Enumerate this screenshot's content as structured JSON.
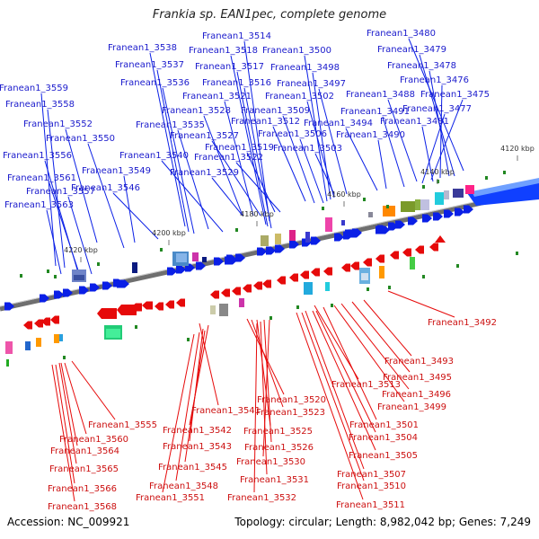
{
  "title": "Frankia sp. EAN1pec, complete genome",
  "footer": {
    "accession": "Accession: NC_009921",
    "summary": "Topology: circular; Length: 8,982,042 bp; Genes: 7,249"
  },
  "colors": {
    "forward": "#0a1fe6",
    "reverse": "#e60a0a",
    "backbone": "#8a8a8a"
  },
  "kbp_ticks": [
    "4120 kbp",
    "4140 kbp",
    "4160 kbp",
    "4180 kbp",
    "4200 kbp",
    "4220 kbp"
  ],
  "forward_labels": [
    "Franean1_3559",
    "Franean1_3558",
    "Franean1_3552",
    "Franean1_3550",
    "Franean1_3556",
    "Franean1_3549",
    "Franean1_3561",
    "Franean1_3557",
    "Franean1_3546",
    "Franean1_3563",
    "Franean1_3538",
    "Franean1_3537",
    "Franean1_3536",
    "Franean1_3535",
    "Franean1_3540",
    "Franean1_3529",
    "Franean1_3514",
    "Franean1_3518",
    "Franean1_3517",
    "Franean1_3516",
    "Franean1_3521",
    "Franean1_3528",
    "Franean1_3527",
    "Franean1_3519",
    "Franean1_3522",
    "Franean1_3500",
    "Franean1_3498",
    "Franean1_3497",
    "Franean1_3502",
    "Franean1_3509",
    "Franean1_3512",
    "Franean1_3506",
    "Franean1_3503",
    "Franean1_3480",
    "Franean1_3479",
    "Franean1_3478",
    "Franean1_3476",
    "Franean1_3488",
    "Franean1_3475",
    "Franean1_3491",
    "Franean1_3477",
    "Franean1_3494",
    "Franean1_3481",
    "Franean1_3490"
  ],
  "reverse_labels": [
    "Franean1_3492",
    "Franean1_3493",
    "Franean1_3495",
    "Franean1_3513",
    "Franean1_3496",
    "Franean1_3520",
    "Franean1_3499",
    "Franean1_3523",
    "Franean1_3541",
    "Franean1_3501",
    "Franean1_3555",
    "Franean1_3542",
    "Franean1_3525",
    "Franean1_3504",
    "Franean1_3560",
    "Franean1_3543",
    "Franean1_3526",
    "Franean1_3564",
    "Franean1_3505",
    "Franean1_3530",
    "Franean1_3545",
    "Franean1_3565",
    "Franean1_3507",
    "Franean1_3531",
    "Franean1_3548",
    "Franean1_3510",
    "Franean1_3566",
    "Franean1_3551",
    "Franean1_3532",
    "Franean1_3568",
    "Franean1_3511"
  ]
}
